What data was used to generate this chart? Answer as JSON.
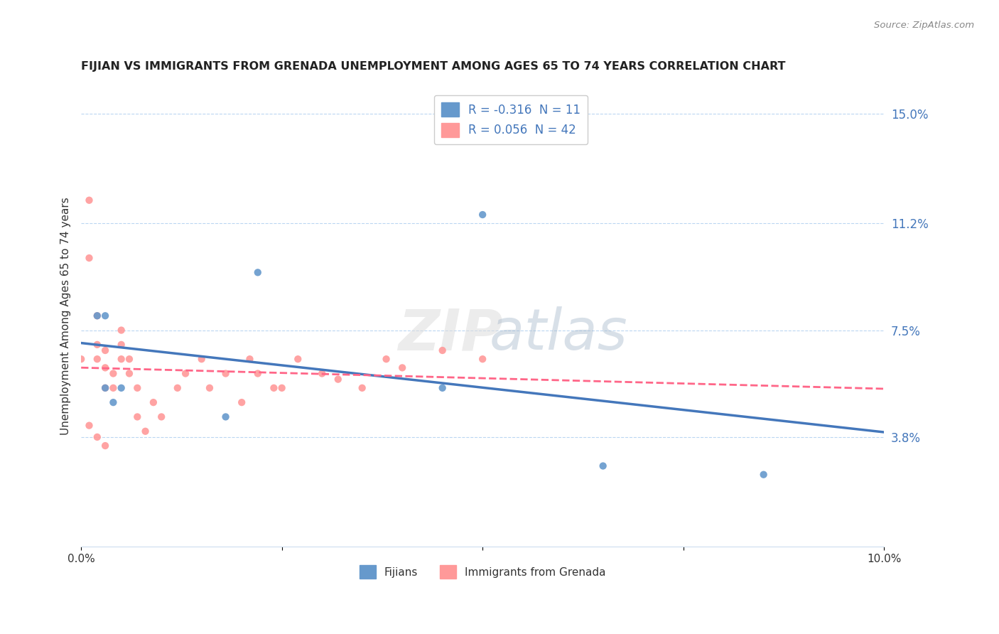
{
  "title": "FIJIAN VS IMMIGRANTS FROM GRENADA UNEMPLOYMENT AMONG AGES 65 TO 74 YEARS CORRELATION CHART",
  "source": "Source: ZipAtlas.com",
  "ylabel": "Unemployment Among Ages 65 to 74 years",
  "xlim": [
    0.0,
    0.1
  ],
  "ylim": [
    0.0,
    0.16
  ],
  "gridline_values": [
    0.038,
    0.075,
    0.112,
    0.15
  ],
  "right_yticks": [
    0.038,
    0.075,
    0.112,
    0.15
  ],
  "right_yticklabels": [
    "3.8%",
    "7.5%",
    "11.2%",
    "15.0%"
  ],
  "fijian_color": "#6699CC",
  "grenada_color": "#FF9999",
  "fijian_line_color": "#4477BB",
  "grenada_line_color": "#FF6688",
  "R_fijian": -0.316,
  "N_fijian": 11,
  "R_grenada": 0.056,
  "N_grenada": 42,
  "fijian_scatter_x": [
    0.002,
    0.003,
    0.004,
    0.005,
    0.018,
    0.022,
    0.045,
    0.05,
    0.065,
    0.085,
    0.003
  ],
  "fijian_scatter_y": [
    0.08,
    0.055,
    0.05,
    0.055,
    0.045,
    0.095,
    0.055,
    0.115,
    0.028,
    0.025,
    0.08
  ],
  "grenada_scatter_x": [
    0.0,
    0.001,
    0.001,
    0.002,
    0.002,
    0.002,
    0.003,
    0.003,
    0.003,
    0.004,
    0.004,
    0.005,
    0.005,
    0.005,
    0.006,
    0.006,
    0.007,
    0.007,
    0.008,
    0.009,
    0.01,
    0.012,
    0.013,
    0.015,
    0.016,
    0.018,
    0.02,
    0.021,
    0.022,
    0.024,
    0.025,
    0.027,
    0.03,
    0.032,
    0.035,
    0.038,
    0.04,
    0.045,
    0.05,
    0.001,
    0.002,
    0.003
  ],
  "grenada_scatter_y": [
    0.065,
    0.12,
    0.1,
    0.065,
    0.07,
    0.08,
    0.055,
    0.062,
    0.068,
    0.055,
    0.06,
    0.065,
    0.07,
    0.075,
    0.06,
    0.065,
    0.055,
    0.045,
    0.04,
    0.05,
    0.045,
    0.055,
    0.06,
    0.065,
    0.055,
    0.06,
    0.05,
    0.065,
    0.06,
    0.055,
    0.055,
    0.065,
    0.06,
    0.058,
    0.055,
    0.065,
    0.062,
    0.068,
    0.065,
    0.042,
    0.038,
    0.035
  ]
}
